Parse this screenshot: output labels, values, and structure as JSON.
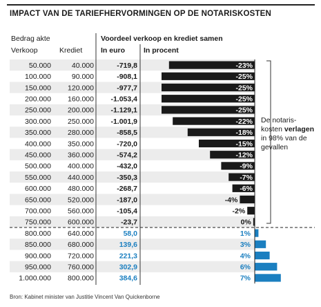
{
  "title": "IMPACT VAN DE TARIEFHERVORMINGEN OP DE NOTARISKOSTEN",
  "headers": {
    "group_left": "Bedrag akte",
    "col_verkoop": "Verkoop",
    "col_krediet": "Krediet",
    "group_right": "Voordeel verkoop en krediet samen",
    "col_euro": "In euro",
    "col_procent": "In procent"
  },
  "note": {
    "part1": "De notaris-kosten",
    "bold": "verlagen",
    "part2": "in 98% van de gevallen"
  },
  "source": "Bron: Kabinet minister van Justitie Vincent Van Quickenborne",
  "colors": {
    "negative_bar": "#1a1a1a",
    "positive_bar": "#1b7fc0",
    "positive_text": "#1b7fc0",
    "stripe": "#ececec"
  },
  "chart_data": {
    "type": "bar",
    "orientation": "horizontal",
    "columns": [
      "Verkoop",
      "Krediet",
      "In euro",
      "In procent"
    ],
    "rows": [
      {
        "verkoop": "50.000",
        "krediet": "40.000",
        "euro": "-719,8",
        "pct_label": "-23%",
        "pct": -23
      },
      {
        "verkoop": "100.000",
        "krediet": "90.000",
        "euro": "-908,1",
        "pct_label": "-25%",
        "pct": -25
      },
      {
        "verkoop": "150.000",
        "krediet": "120.000",
        "euro": "-977,7",
        "pct_label": "-25%",
        "pct": -25
      },
      {
        "verkoop": "200.000",
        "krediet": "160.000",
        "euro": "-1.053,4",
        "pct_label": "-25%",
        "pct": -25
      },
      {
        "verkoop": "250.000",
        "krediet": "200.000",
        "euro": "-1.129,1",
        "pct_label": "-25%",
        "pct": -25
      },
      {
        "verkoop": "300.000",
        "krediet": "250.000",
        "euro": "-1.001,9",
        "pct_label": "-22%",
        "pct": -22
      },
      {
        "verkoop": "350.000",
        "krediet": "280.000",
        "euro": "-858,5",
        "pct_label": "-18%",
        "pct": -18
      },
      {
        "verkoop": "400.000",
        "krediet": "350.000",
        "euro": "-720,0",
        "pct_label": "-15%",
        "pct": -15
      },
      {
        "verkoop": "450.000",
        "krediet": "360.000",
        "euro": "-574,2",
        "pct_label": "-12%",
        "pct": -12
      },
      {
        "verkoop": "500.000",
        "krediet": "400.000",
        "euro": "-432,0",
        "pct_label": "-9%",
        "pct": -9
      },
      {
        "verkoop": "550.000",
        "krediet": "440.000",
        "euro": "-350,3",
        "pct_label": "-7%",
        "pct": -7
      },
      {
        "verkoop": "600.000",
        "krediet": "480.000",
        "euro": "-268,7",
        "pct_label": "-6%",
        "pct": -6
      },
      {
        "verkoop": "650.000",
        "krediet": "520.000",
        "euro": "-187,0",
        "pct_label": "-4%",
        "pct": -4
      },
      {
        "verkoop": "700.000",
        "krediet": "560.000",
        "euro": "-105,4",
        "pct_label": "-2%",
        "pct": -2
      },
      {
        "verkoop": "750.000",
        "krediet": "600.000",
        "euro": "-23,7",
        "pct_label": "0%",
        "pct": -0.4
      },
      {
        "verkoop": "800.000",
        "krediet": "640.000",
        "euro": "58,0",
        "pct_label": "1%",
        "pct": 1
      },
      {
        "verkoop": "850.000",
        "krediet": "680.000",
        "euro": "139,6",
        "pct_label": "3%",
        "pct": 3
      },
      {
        "verkoop": "900.000",
        "krediet": "720.000",
        "euro": "221,3",
        "pct_label": "4%",
        "pct": 4
      },
      {
        "verkoop": "950.000",
        "krediet": "760.000",
        "euro": "302,9",
        "pct_label": "6%",
        "pct": 6
      },
      {
        "verkoop": "1.000.000",
        "krediet": "800.000",
        "euro": "384,6",
        "pct_label": "7%",
        "pct": 7
      }
    ]
  }
}
